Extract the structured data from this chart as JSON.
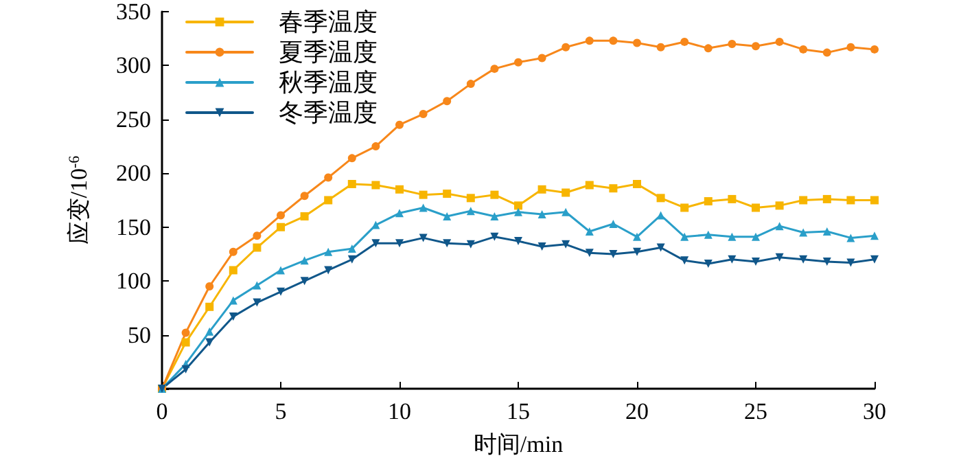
{
  "chart_data": {
    "type": "line",
    "xlabel": "时间/min",
    "ylabel": "应变/10$^{-6}$",
    "x": [
      0,
      1,
      2,
      3,
      4,
      5,
      6,
      7,
      8,
      9,
      10,
      11,
      12,
      13,
      14,
      15,
      16,
      17,
      18,
      19,
      20,
      21,
      22,
      23,
      24,
      25,
      26,
      27,
      28,
      29,
      30
    ],
    "series": [
      {
        "name": "春季温度",
        "color": "#f7b500",
        "marker": "square",
        "values": [
          0,
          43,
          76,
          110,
          131,
          150,
          160,
          175,
          190,
          189,
          185,
          180,
          181,
          177,
          180,
          170,
          185,
          182,
          189,
          186,
          190,
          177,
          168,
          174,
          176,
          168,
          170,
          175,
          176,
          175,
          175
        ]
      },
      {
        "name": "夏季温度",
        "color": "#f7871a",
        "marker": "circle",
        "values": [
          0,
          52,
          95,
          127,
          142,
          161,
          179,
          196,
          214,
          225,
          245,
          255,
          267,
          283,
          297,
          303,
          307,
          317,
          323,
          323,
          321,
          317,
          322,
          316,
          320,
          318,
          322,
          315,
          312,
          317,
          315
        ]
      },
      {
        "name": "秋季温度",
        "color": "#2a9fc9",
        "marker": "triangle",
        "values": [
          0,
          23,
          53,
          82,
          96,
          110,
          119,
          127,
          130,
          152,
          163,
          168,
          160,
          165,
          160,
          164,
          162,
          164,
          146,
          153,
          141,
          161,
          141,
          143,
          141,
          141,
          151,
          145,
          146,
          140,
          142
        ]
      },
      {
        "name": "冬季温度",
        "color": "#10578a",
        "marker": "triangle-down",
        "values": [
          0,
          18,
          43,
          67,
          80,
          90,
          100,
          110,
          120,
          135,
          135,
          140,
          135,
          134,
          141,
          137,
          132,
          134,
          126,
          125,
          127,
          131,
          119,
          116,
          120,
          118,
          122,
          120,
          118,
          117,
          120
        ]
      }
    ],
    "xlim": [
      0,
      30
    ],
    "xticks": [
      0,
      5,
      10,
      15,
      20,
      25,
      30
    ],
    "ylim": [
      0,
      350
    ],
    "yticks": [
      {
        "value": 0,
        "label": null
      },
      50,
      100,
      150,
      200,
      250,
      300,
      350
    ],
    "grid": false,
    "legend": "top left",
    "line_style": "solid"
  }
}
